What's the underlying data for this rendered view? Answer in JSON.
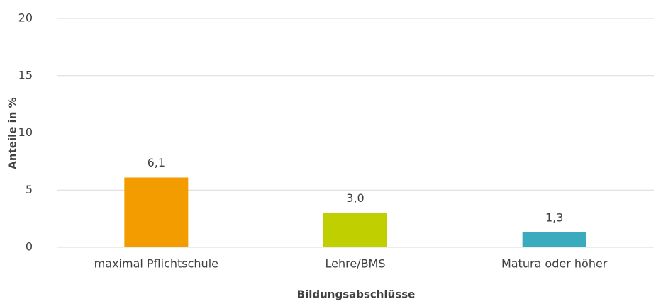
{
  "chart_data": {
    "type": "bar",
    "categories": [
      "maximal Pflichtschule",
      "Lehre/BMS",
      "Matura oder höher"
    ],
    "values": [
      6.1,
      3.0,
      1.3
    ],
    "value_labels": [
      "6,1",
      "3,0",
      "1,3"
    ],
    "colors": [
      "#f39c00",
      "#bfcf00",
      "#3aabbc"
    ],
    "ylim": [
      0,
      20
    ],
    "yticks": [
      0,
      5,
      10,
      15,
      20
    ],
    "grid": true,
    "y_label": "Anteile in %",
    "x_label": "Bildungsabschlüsse"
  }
}
